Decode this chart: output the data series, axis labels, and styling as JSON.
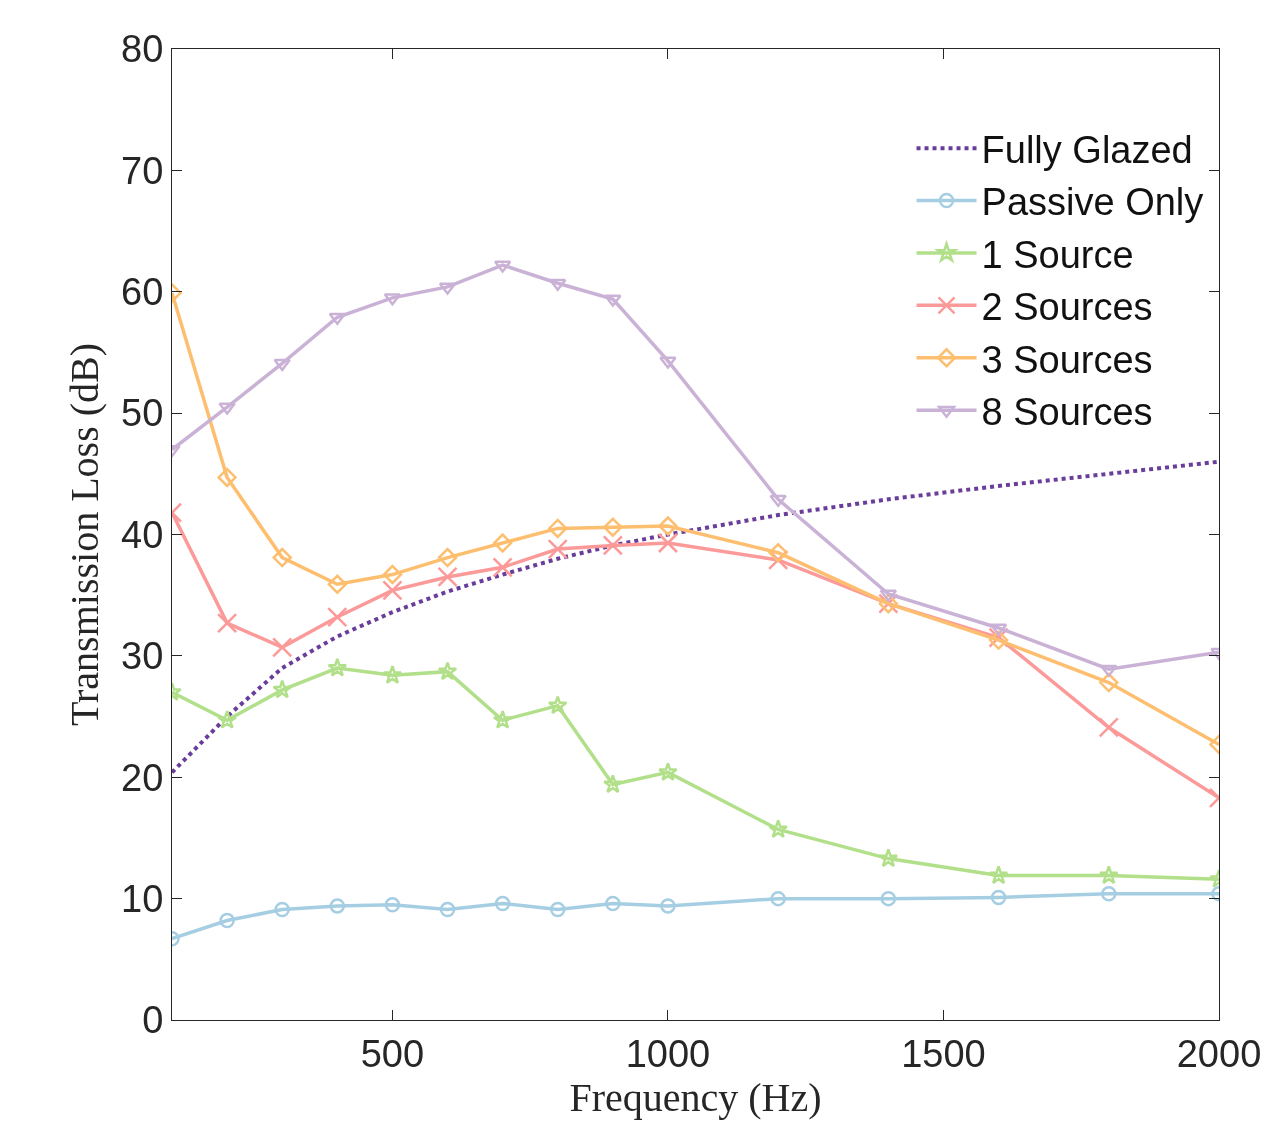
{
  "chart_data": {
    "type": "line",
    "xlabel": "Frequency (Hz)",
    "ylabel": "Transmission Loss (dB)",
    "x": [
      100,
      200,
      300,
      400,
      500,
      600,
      700,
      800,
      900,
      1000,
      1200,
      1400,
      1600,
      1800,
      2000
    ],
    "xlim": [
      100,
      2000
    ],
    "xticks": [
      500,
      1000,
      1500,
      2000
    ],
    "ylim": [
      0,
      80
    ],
    "yticks": [
      0,
      10,
      20,
      30,
      40,
      50,
      60,
      70,
      80
    ],
    "legend": "top right",
    "series": [
      {
        "name": "Fully Glazed",
        "color": "#6a3d9a",
        "marker": "none",
        "line_style": "dotted",
        "values": [
          20.4,
          25.0,
          29.0,
          31.6,
          33.6,
          35.3,
          36.7,
          38.0,
          39.1,
          40.0,
          41.6,
          42.9,
          44.0,
          45.0,
          46.0
        ]
      },
      {
        "name": "Passive Only",
        "color": "#a6cee3",
        "marker": "circle",
        "line_style": "solid",
        "values": [
          6.7,
          8.2,
          9.1,
          9.4,
          9.5,
          9.1,
          9.6,
          9.1,
          9.6,
          9.4,
          10.0,
          10.0,
          10.1,
          10.4,
          10.4
        ]
      },
      {
        "name": "1 Source",
        "color": "#b2df8a",
        "marker": "star",
        "line_style": "solid",
        "values": [
          27.0,
          24.7,
          27.2,
          29.0,
          28.4,
          28.7,
          24.7,
          25.9,
          19.4,
          20.4,
          15.7,
          13.3,
          11.9,
          11.9,
          11.6
        ]
      },
      {
        "name": "2 Sources",
        "color": "#fb9a99",
        "marker": "cross",
        "line_style": "solid",
        "values": [
          41.8,
          32.7,
          30.7,
          33.2,
          35.4,
          36.5,
          37.3,
          38.8,
          39.1,
          39.3,
          37.9,
          34.3,
          31.5,
          24.1,
          18.3
        ]
      },
      {
        "name": "3 Sources",
        "color": "#fdbf6f",
        "marker": "diamond",
        "line_style": "solid",
        "values": [
          59.9,
          44.7,
          38.1,
          35.9,
          36.7,
          38.1,
          39.3,
          40.5,
          40.6,
          40.7,
          38.5,
          34.3,
          31.3,
          27.8,
          22.7
        ]
      },
      {
        "name": "8 Sources",
        "color": "#cab2d6",
        "marker": "triangle",
        "line_style": "solid",
        "values": [
          47.0,
          50.5,
          54.1,
          57.9,
          59.5,
          60.4,
          62.2,
          60.7,
          59.4,
          54.3,
          42.9,
          35.1,
          32.3,
          28.9,
          30.3
        ]
      }
    ]
  }
}
